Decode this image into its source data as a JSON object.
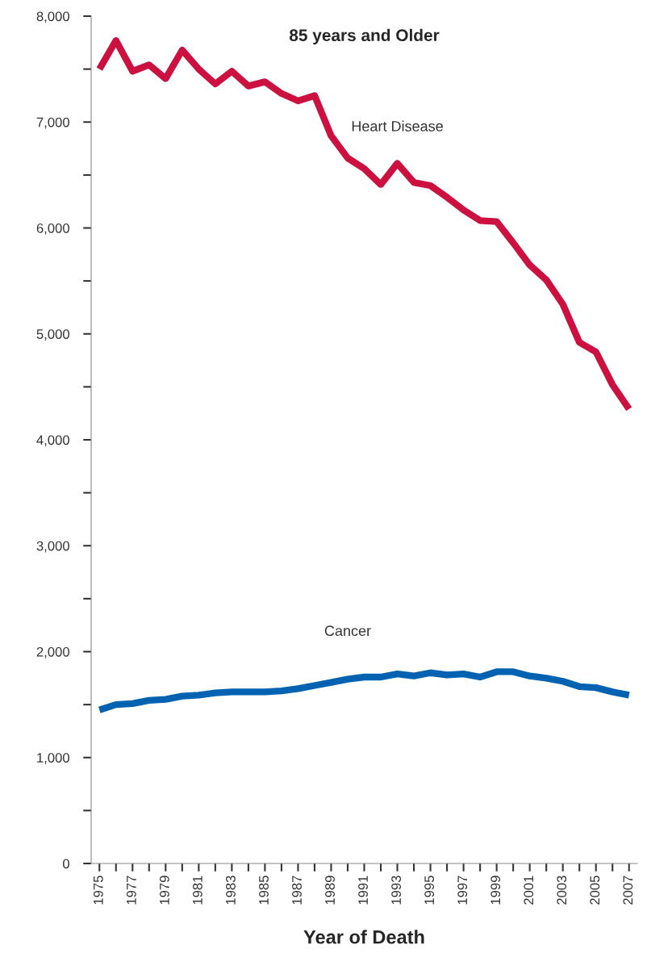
{
  "chart_data": {
    "type": "line",
    "title": "85 years and Older",
    "xlabel": "Year of Death",
    "x": [
      1975,
      1976,
      1977,
      1978,
      1979,
      1980,
      1981,
      1982,
      1983,
      1984,
      1985,
      1986,
      1987,
      1988,
      1989,
      1990,
      1991,
      1992,
      1993,
      1994,
      1995,
      1996,
      1997,
      1998,
      1999,
      2000,
      2001,
      2002,
      2003,
      2004,
      2005,
      2006,
      2007
    ],
    "series": [
      {
        "name": "Heart Disease",
        "color": "#cc1141",
        "values": [
          7500,
          7770,
          7480,
          7540,
          7410,
          7680,
          7500,
          7360,
          7480,
          7340,
          7380,
          7270,
          7200,
          7250,
          6870,
          6660,
          6560,
          6410,
          6610,
          6430,
          6400,
          6290,
          6170,
          6070,
          6060,
          5860,
          5650,
          5510,
          5280,
          4920,
          4830,
          4520,
          4290
        ]
      },
      {
        "name": "Cancer",
        "color": "#0062b0",
        "values": [
          1450,
          1500,
          1510,
          1540,
          1550,
          1580,
          1590,
          1610,
          1620,
          1620,
          1620,
          1630,
          1650,
          1680,
          1710,
          1740,
          1760,
          1760,
          1790,
          1770,
          1800,
          1780,
          1790,
          1760,
          1810,
          1810,
          1770,
          1750,
          1720,
          1670,
          1660,
          1620,
          1590
        ]
      }
    ],
    "xlim": [
      1974.5,
      2007.5
    ],
    "xticks": [
      1975,
      {
        "value": 1976,
        "label": null
      },
      1977,
      {
        "value": 1978,
        "label": null
      },
      1979,
      {
        "value": 1980,
        "label": null
      },
      1981,
      {
        "value": 1982,
        "label": null
      },
      1983,
      {
        "value": 1984,
        "label": null
      },
      1985,
      {
        "value": 1986,
        "label": null
      },
      1987,
      {
        "value": 1988,
        "label": null
      },
      1989,
      {
        "value": 1990,
        "label": null
      },
      1991,
      {
        "value": 1992,
        "label": null
      },
      1993,
      {
        "value": 1994,
        "label": null
      },
      1995,
      {
        "value": 1996,
        "label": null
      },
      1997,
      {
        "value": 1998,
        "label": null
      },
      1999,
      {
        "value": 2000,
        "label": null
      },
      2001,
      {
        "value": 2002,
        "label": null
      },
      2003,
      {
        "value": 2004,
        "label": null
      },
      2005,
      {
        "value": 2006,
        "label": null
      },
      2007
    ],
    "ylim": [
      0,
      8000
    ],
    "yticks": [
      {
        "value": 0,
        "label": "0"
      },
      {
        "value": 500,
        "label": null
      },
      {
        "value": 1000,
        "label": "1,000"
      },
      {
        "value": 1500,
        "label": null
      },
      {
        "value": 2000,
        "label": "2,000"
      },
      {
        "value": 2500,
        "label": null
      },
      {
        "value": 3000,
        "label": "3,000"
      },
      {
        "value": 3500,
        "label": null
      },
      {
        "value": 4000,
        "label": "4,000"
      },
      {
        "value": 4500,
        "label": null
      },
      {
        "value": 5000,
        "label": "5,000"
      },
      {
        "value": 5500,
        "label": null
      },
      {
        "value": 6000,
        "label": "6,000"
      },
      {
        "value": 6500,
        "label": null
      },
      {
        "value": 7000,
        "label": "7,000"
      },
      {
        "value": 7500,
        "label": null
      },
      {
        "value": 8000,
        "label": "8,000"
      }
    ],
    "grid": false,
    "legend": false,
    "marker": "none",
    "line_style": "solid"
  }
}
